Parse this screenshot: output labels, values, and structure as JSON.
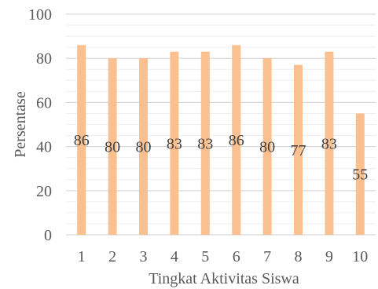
{
  "chart_data": {
    "type": "bar",
    "categories": [
      "1",
      "2",
      "3",
      "4",
      "5",
      "6",
      "7",
      "8",
      "9",
      "10"
    ],
    "values": [
      86,
      80,
      80,
      83,
      83,
      86,
      80,
      77,
      83,
      55
    ],
    "xlabel": "Tingkat Aktivitas Siswa",
    "ylabel": "Persentase",
    "ylim": [
      0,
      100
    ],
    "yticks": [
      0,
      20,
      40,
      60,
      80,
      100
    ],
    "grid": true,
    "legend": "none",
    "colors": {
      "bar": "#FAC090",
      "major_grid": "#D9D9D9",
      "minor_grid": "#EFEFEF"
    }
  }
}
